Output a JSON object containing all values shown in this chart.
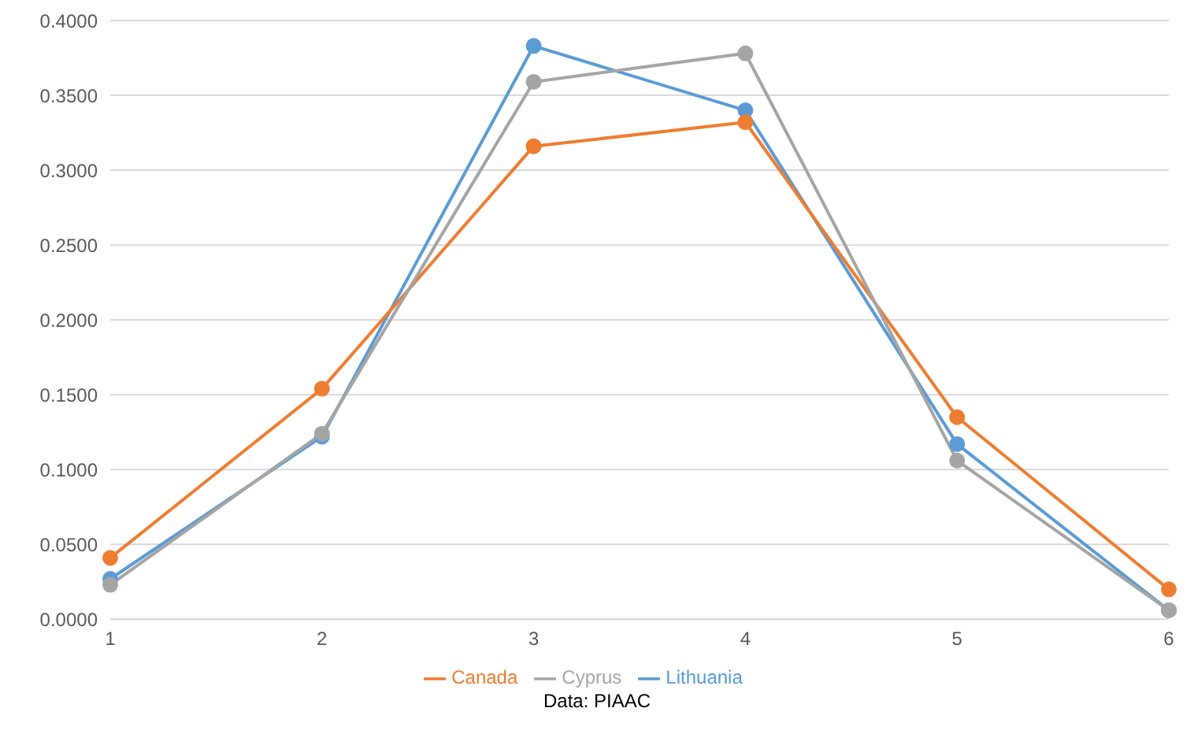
{
  "chart_data": {
    "type": "line",
    "categories": [
      "1",
      "2",
      "3",
      "4",
      "5",
      "6"
    ],
    "series": [
      {
        "name": "Lithuania",
        "color": "#5b9bd5",
        "values": [
          0.027,
          0.122,
          0.383,
          0.34,
          0.117,
          0.006
        ]
      },
      {
        "name": "Canada",
        "color": "#ed7d31",
        "values": [
          0.041,
          0.154,
          0.316,
          0.332,
          0.135,
          0.02
        ]
      },
      {
        "name": "Cyprus",
        "color": "#a5a5a5",
        "values": [
          0.023,
          0.124,
          0.359,
          0.378,
          0.106,
          0.006
        ]
      }
    ],
    "ylim": [
      0,
      0.4
    ],
    "yticks": [
      {
        "value": 0,
        "label": "0.0000"
      },
      {
        "value": 0.05,
        "label": "0.0500"
      },
      {
        "value": 0.1,
        "label": "0.1000"
      },
      {
        "value": 0.15,
        "label": "0.1500"
      },
      {
        "value": 0.2,
        "label": "0.2000"
      },
      {
        "value": 0.25,
        "label": "0.2500"
      },
      {
        "value": 0.3,
        "label": "0.3000"
      },
      {
        "value": 0.35,
        "label": "0.3500"
      },
      {
        "value": 0.4,
        "label": "0.4000"
      }
    ],
    "grid": "y",
    "legend": "bottom",
    "marker": "circle",
    "line_style": "solid",
    "annotations": [
      "Data: PIAAC"
    ]
  }
}
